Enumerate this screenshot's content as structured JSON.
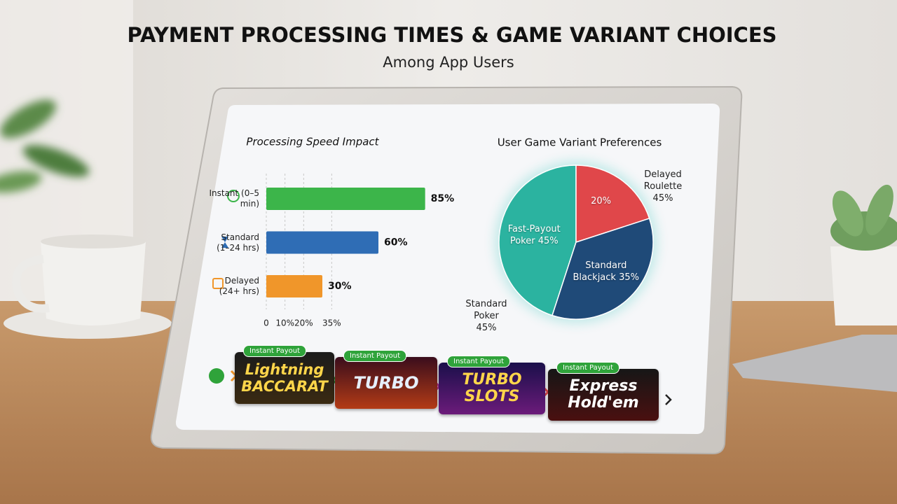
{
  "title": "PAYMENT PROCESSING TIMES & GAME VARIANT CHOICES",
  "subtitle": "Among App Users",
  "chart_data": [
    {
      "type": "bar",
      "orientation": "horizontal",
      "title": "Processing Speed Impact",
      "categories": [
        "Instant (0–5 min)",
        "Standard (1–24 hrs)",
        "Delayed (24+ hrs)"
      ],
      "values": [
        85,
        60,
        30
      ],
      "value_labels": [
        "85%",
        "60%",
        "30%"
      ],
      "colors": [
        "#3cb54a",
        "#2f6db5",
        "#f0962a"
      ],
      "xlim": [
        0,
        90
      ],
      "xticks": [
        0,
        {
          "value": 10,
          "label": "10%"
        },
        {
          "value": 20,
          "label": "20%"
        },
        {
          "value": 35,
          "label": "35%"
        }
      ],
      "grid": true
    },
    {
      "type": "pie",
      "title": "User Game Variant Preferences",
      "categories": [
        "Fast-Payout Poker",
        null,
        "Standard Blackjack"
      ],
      "values": [
        45,
        20,
        35
      ],
      "value_labels": [
        "45%",
        "20%",
        "35%"
      ],
      "colors": [
        "#2bb3a0",
        "#e0474a",
        "#1f4a78"
      ],
      "annotations": [
        "Delayed Roulette 45%",
        "Standard Poker 45%"
      ]
    }
  ],
  "game_cards": [
    {
      "badge": "Instant Payout",
      "title": "Lightning BACCARAT"
    },
    {
      "badge": "Instant Payout",
      "title": "TURBO"
    },
    {
      "badge": "Instant Payout",
      "title": "TURBO SLOTS"
    },
    {
      "badge": "Instant Payout",
      "title": "Express Hold'em"
    }
  ]
}
